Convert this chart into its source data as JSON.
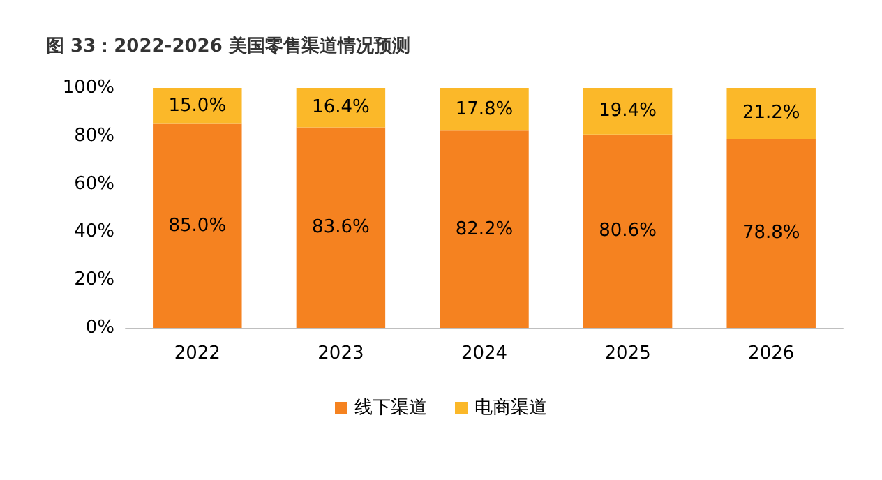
{
  "chart_data": {
    "type": "bar",
    "title": "图 33：2022-2026 美国零售渠道情况预测",
    "categories": [
      "2022",
      "2023",
      "2024",
      "2025",
      "2026"
    ],
    "stacked": true,
    "series": [
      {
        "name": "线下渠道",
        "color": "#f58220",
        "values": [
          85.0,
          83.6,
          82.2,
          80.6,
          78.8
        ],
        "value_labels": [
          "85.0%",
          "83.6%",
          "82.2%",
          "80.6%",
          "78.8%"
        ]
      },
      {
        "name": "电商渠道",
        "color": "#fbb829",
        "values": [
          15.0,
          16.4,
          17.8,
          19.4,
          21.2
        ],
        "value_labels": [
          "15.0%",
          "16.4%",
          "17.8%",
          "19.4%",
          "21.2%"
        ]
      }
    ],
    "ylim": [
      0,
      100
    ],
    "yticks": [
      {
        "value": 0,
        "label": "0%"
      },
      {
        "value": 20,
        "label": "20%"
      },
      {
        "value": 40,
        "label": "40%"
      },
      {
        "value": 60,
        "label": "60%"
      },
      {
        "value": 80,
        "label": "80%"
      },
      {
        "value": 100,
        "label": "100%"
      }
    ],
    "grid": false,
    "legend": "bottom"
  }
}
